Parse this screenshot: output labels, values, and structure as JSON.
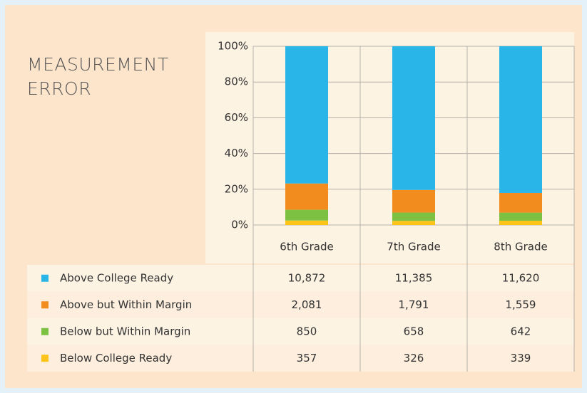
{
  "chart_data": {
    "type": "bar",
    "title": "MEASUREMENT ERROR",
    "categories": [
      "6th Grade",
      "7th Grade",
      "8th Grade"
    ],
    "series": [
      {
        "name": "Above College Ready",
        "color": "#29b5e8",
        "values": [
          10872,
          11385,
          11620
        ],
        "value_labels": [
          "10,872",
          "11,385",
          "11,620"
        ]
      },
      {
        "name": "Above but Within Margin",
        "color": "#f28c1e",
        "values": [
          2081,
          1791,
          1559
        ],
        "value_labels": [
          "2,081",
          "1,791",
          "1,559"
        ]
      },
      {
        "name": "Below but Within Margin",
        "color": "#7dc142",
        "values": [
          850,
          658,
          642
        ],
        "value_labels": [
          "850",
          "658",
          "642"
        ]
      },
      {
        "name": "Below College Ready",
        "color": "#fcc419",
        "values": [
          357,
          326,
          339
        ],
        "value_labels": [
          "357",
          "326",
          "339"
        ]
      }
    ],
    "ylim": [
      0,
      100
    ],
    "yticks": [
      {
        "value": 0,
        "label": "0%"
      },
      {
        "value": 20,
        "label": "20%"
      },
      {
        "value": 40,
        "label": "40%"
      },
      {
        "value": 60,
        "label": "60%"
      },
      {
        "value": 80,
        "label": "80%"
      },
      {
        "value": 100,
        "label": "100%"
      }
    ],
    "grid": true,
    "stacked": "percent"
  }
}
